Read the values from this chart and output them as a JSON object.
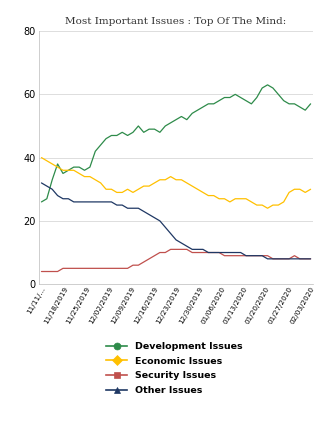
{
  "title": "Most Important Issues : Top Of The Mind:",
  "ylim": [
    0,
    80
  ],
  "yticks": [
    0,
    20,
    40,
    60,
    80
  ],
  "background_color": "#ffffff",
  "series": {
    "Development Issues": {
      "color": "#2e8b4a",
      "values": [
        26,
        27,
        33,
        38,
        35,
        36,
        37,
        37,
        36,
        37,
        42,
        44,
        46,
        47,
        47,
        48,
        47,
        48,
        50,
        48,
        49,
        49,
        48,
        50,
        51,
        52,
        53,
        52,
        54,
        55,
        56,
        57,
        57,
        58,
        59,
        59,
        60,
        59,
        58,
        57,
        59,
        62,
        63,
        62,
        60,
        58,
        57,
        57,
        56,
        55,
        57
      ]
    },
    "Economic Issues": {
      "color": "#ffc000",
      "values": [
        40,
        39,
        38,
        37,
        36,
        36,
        36,
        35,
        34,
        34,
        33,
        32,
        30,
        30,
        29,
        29,
        30,
        29,
        30,
        31,
        31,
        32,
        33,
        33,
        34,
        33,
        33,
        32,
        31,
        30,
        29,
        28,
        28,
        27,
        27,
        26,
        27,
        27,
        27,
        26,
        25,
        25,
        24,
        25,
        25,
        26,
        29,
        30,
        30,
        29,
        30
      ]
    },
    "Security Issues": {
      "color": "#c0504d",
      "values": [
        4,
        4,
        4,
        4,
        5,
        5,
        5,
        5,
        5,
        5,
        5,
        5,
        5,
        5,
        5,
        5,
        5,
        6,
        6,
        7,
        8,
        9,
        10,
        10,
        11,
        11,
        11,
        11,
        10,
        10,
        10,
        10,
        10,
        10,
        9,
        9,
        9,
        9,
        9,
        9,
        9,
        9,
        9,
        8,
        8,
        8,
        8,
        9,
        8,
        8,
        8
      ]
    },
    "Other Issues": {
      "color": "#1f3864",
      "values": [
        32,
        31,
        30,
        28,
        27,
        27,
        26,
        26,
        26,
        26,
        26,
        26,
        26,
        26,
        25,
        25,
        24,
        24,
        24,
        23,
        22,
        21,
        20,
        18,
        16,
        14,
        13,
        12,
        11,
        11,
        11,
        10,
        10,
        10,
        10,
        10,
        10,
        10,
        9,
        9,
        9,
        9,
        8,
        8,
        8,
        8,
        8,
        8,
        8,
        8,
        8
      ]
    }
  },
  "x_labels": [
    "11/11/...",
    "11/18/2019",
    "11/25/2019",
    "12/02/2019",
    "12/09/2019",
    "12/16/2019",
    "12/23/2019",
    "12/30/2019",
    "01/06/2020",
    "01/13/2020",
    "01/20/2020",
    "01/27/2020",
    "02/03/2020"
  ],
  "legend_labels": [
    "Development Issues",
    "Economic Issues",
    "Security Issues",
    "Other Issues"
  ],
  "legend_colors": [
    "#2e8b4a",
    "#ffc000",
    "#c0504d",
    "#1f3864"
  ],
  "legend_markers": [
    "o",
    "D",
    "s",
    "^"
  ]
}
